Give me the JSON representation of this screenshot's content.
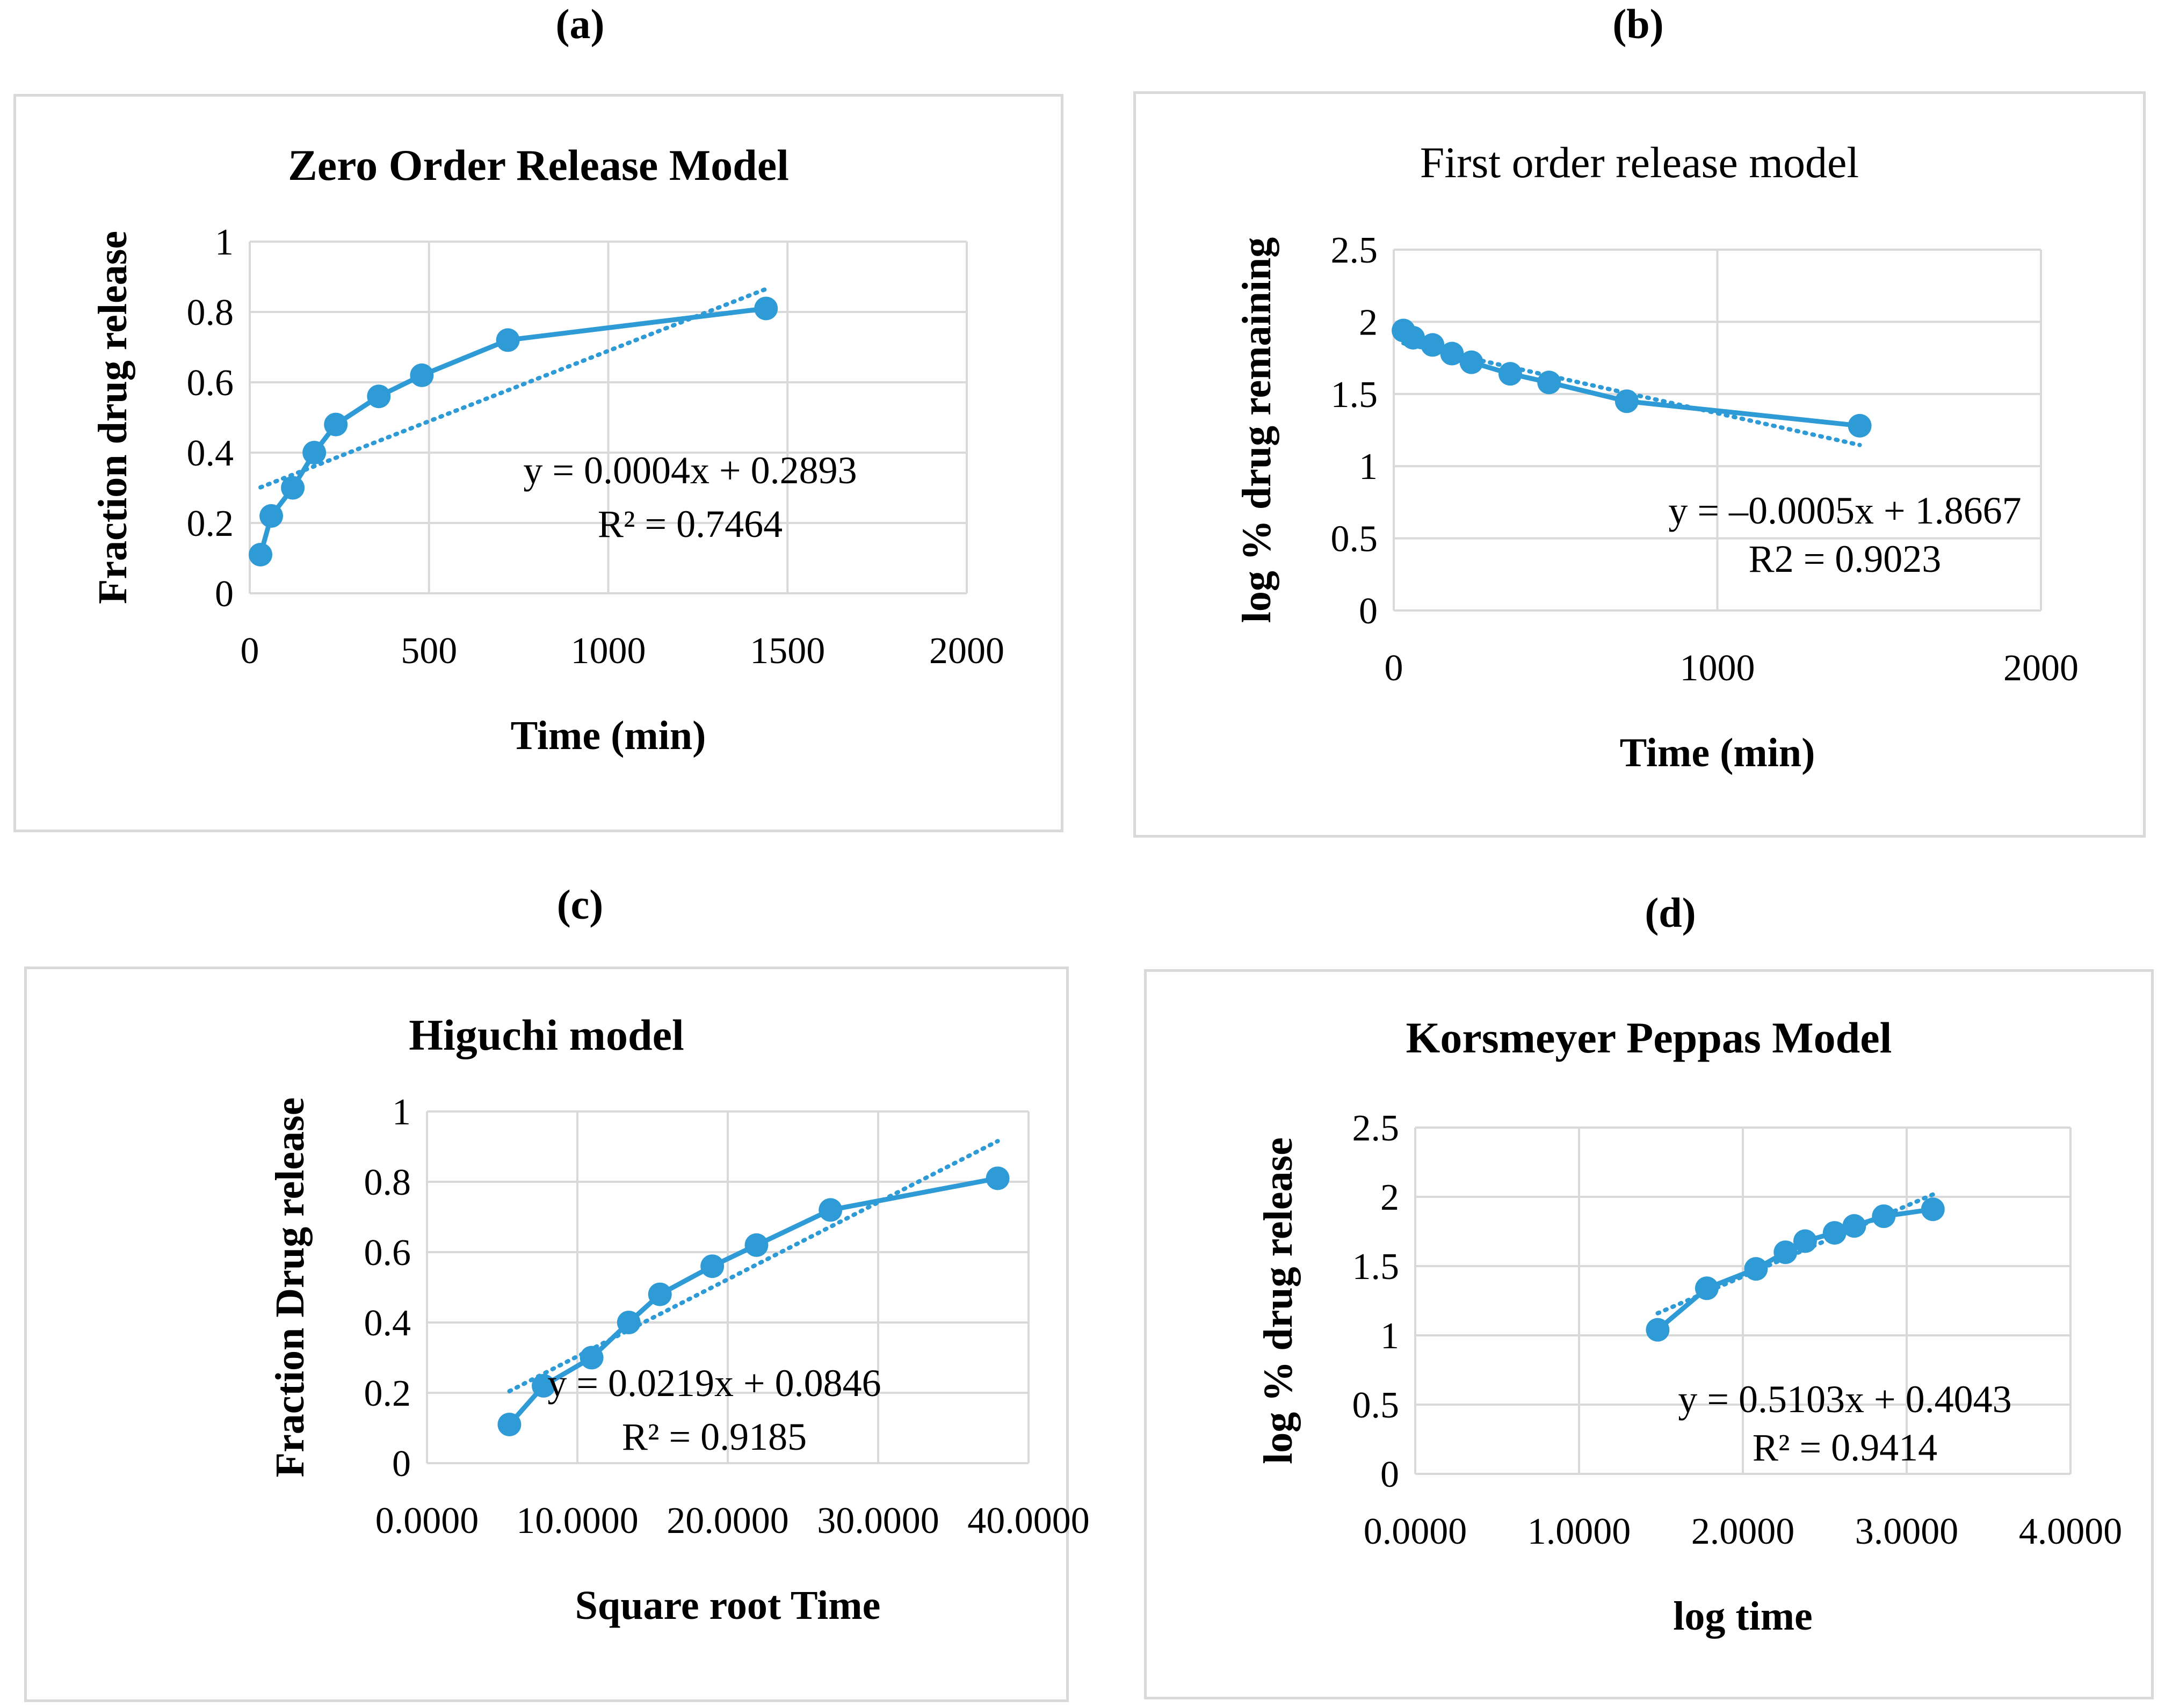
{
  "colors": {
    "series": "#2e9bd6",
    "grid": "#d9d9d9",
    "border": "#d9d9d9",
    "text": "#000000"
  },
  "panels": [
    {
      "label": "(a)"
    },
    {
      "label": "(b)"
    },
    {
      "label": "(c)"
    },
    {
      "label": "(d)"
    }
  ],
  "chart_data": [
    {
      "type": "scatter",
      "title": "Zero Order Release Model",
      "xlabel": "Time (min)",
      "ylabel": "Fraction drug release",
      "xlim": [
        0,
        2000
      ],
      "ylim": [
        0,
        1
      ],
      "xticks": [
        0,
        500,
        1000,
        1500,
        2000
      ],
      "yticks": [
        0,
        0.2,
        0.4,
        0.6,
        0.8,
        1
      ],
      "xtick_labels": [
        "0",
        "500",
        "1000",
        "1500",
        "2000"
      ],
      "ytick_labels": [
        "0",
        "0.2",
        "0.4",
        "0.6",
        "0.8",
        "1"
      ],
      "x": [
        30,
        60,
        120,
        180,
        240,
        360,
        480,
        720,
        1440
      ],
      "y": [
        0.11,
        0.22,
        0.3,
        0.4,
        0.48,
        0.56,
        0.62,
        0.72,
        0.81
      ],
      "trendline": {
        "slope": 0.0004,
        "intercept": 0.2893,
        "x_range": [
          30,
          1440
        ]
      },
      "equation": "y = 0.0004x + 0.2893",
      "r2": "R² = 0.7464",
      "grid": true
    },
    {
      "type": "scatter",
      "title": "First order release model",
      "xlabel": "Time (min)",
      "ylabel": "log % drug remaining",
      "xlim": [
        0,
        2000
      ],
      "ylim": [
        0,
        2.5
      ],
      "xticks": [
        0,
        1000,
        2000
      ],
      "yticks": [
        0,
        0.5,
        1,
        1.5,
        2,
        2.5
      ],
      "xtick_labels": [
        "0",
        "1000",
        "2000"
      ],
      "ytick_labels": [
        "0",
        "0.5",
        "1",
        "1.5",
        "2",
        "2.5"
      ],
      "x": [
        30,
        60,
        120,
        180,
        240,
        360,
        480,
        720,
        1440
      ],
      "y": [
        1.94,
        1.89,
        1.84,
        1.78,
        1.72,
        1.64,
        1.58,
        1.45,
        1.28
      ],
      "trendline": {
        "slope": -0.0005,
        "intercept": 1.8667,
        "x_range": [
          30,
          1440
        ]
      },
      "equation": "y = –0.0005x + 1.8667",
      "r2": "R2 = 0.9023",
      "grid": true
    },
    {
      "type": "scatter",
      "title": "Higuchi model",
      "xlabel": "Square root Time",
      "ylabel": "Fraction Drug release",
      "xlim": [
        0,
        40
      ],
      "ylim": [
        0,
        1
      ],
      "xticks": [
        0,
        10,
        20,
        30,
        40
      ],
      "yticks": [
        0,
        0.2,
        0.4,
        0.6,
        0.8,
        1
      ],
      "xtick_labels": [
        "0.0000",
        "10.0000",
        "20.0000",
        "30.0000",
        "40.0000"
      ],
      "ytick_labels": [
        "0",
        "0.2",
        "0.4",
        "0.6",
        "0.8",
        "1"
      ],
      "x": [
        5.48,
        7.75,
        10.95,
        13.42,
        15.49,
        18.97,
        21.91,
        26.83,
        37.95
      ],
      "y": [
        0.11,
        0.22,
        0.3,
        0.4,
        0.48,
        0.56,
        0.62,
        0.72,
        0.81
      ],
      "trendline": {
        "slope": 0.0219,
        "intercept": 0.0846,
        "x_range": [
          5.48,
          37.95
        ]
      },
      "equation": "y = 0.0219x + 0.0846",
      "r2": "R² = 0.9185",
      "grid": true
    },
    {
      "type": "scatter",
      "title": "Korsmeyer Peppas Model",
      "xlabel": "log time",
      "ylabel": "log % drug release",
      "xlim": [
        0,
        4
      ],
      "ylim": [
        0,
        2.5
      ],
      "xticks": [
        0,
        1,
        2,
        3,
        4
      ],
      "yticks": [
        0,
        0.5,
        1,
        1.5,
        2,
        2.5
      ],
      "xtick_labels": [
        "0.0000",
        "1.0000",
        "2.0000",
        "3.0000",
        "4.0000"
      ],
      "ytick_labels": [
        "0",
        "0.5",
        "1",
        "1.5",
        "2",
        "2.5"
      ],
      "x": [
        1.48,
        1.78,
        2.08,
        2.26,
        2.38,
        2.56,
        2.68,
        2.86,
        3.16
      ],
      "y": [
        1.04,
        1.34,
        1.48,
        1.6,
        1.68,
        1.74,
        1.79,
        1.86,
        1.91
      ],
      "trendline": {
        "slope": 0.5103,
        "intercept": 0.4043,
        "x_range": [
          1.48,
          3.16
        ]
      },
      "equation": "y = 0.5103x + 0.4043",
      "r2": "R² = 0.9414",
      "grid": true
    }
  ]
}
